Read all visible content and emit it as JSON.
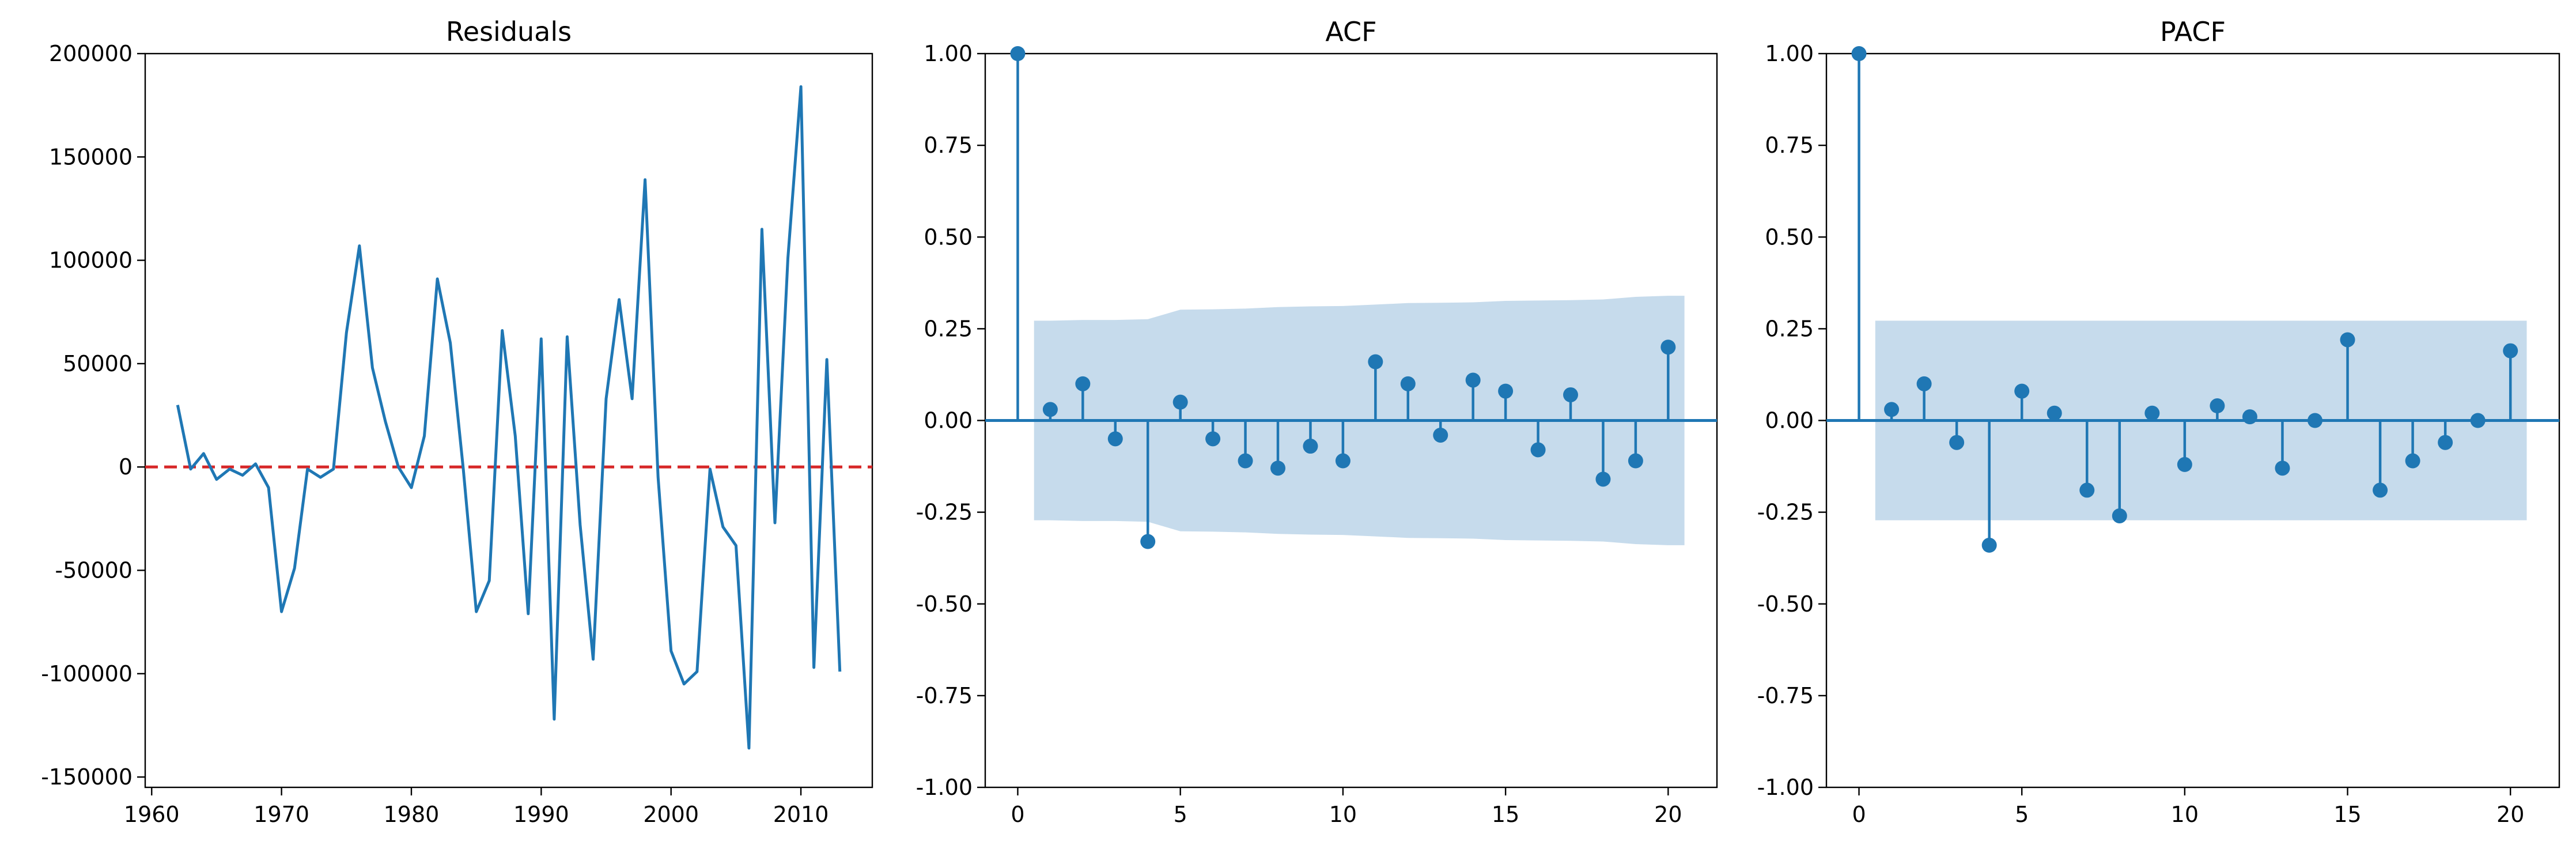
{
  "chart_data": [
    {
      "type": "line",
      "title": "Residuals",
      "xlim": [
        1959.5,
        2015.5
      ],
      "ylim": [
        -155000,
        200000
      ],
      "xticks": [
        1960,
        1970,
        1980,
        1990,
        2000,
        2010
      ],
      "yticks": [
        -150000,
        -100000,
        -50000,
        0,
        50000,
        100000,
        150000,
        200000
      ],
      "line_color": "#1f77b4",
      "reference_line": {
        "y": 0,
        "color": "#d62728",
        "style": "dashed"
      },
      "x": [
        1962,
        1963,
        1964,
        1965,
        1966,
        1967,
        1968,
        1969,
        1970,
        1971,
        1972,
        1973,
        1974,
        1975,
        1976,
        1977,
        1978,
        1979,
        1980,
        1981,
        1982,
        1983,
        1984,
        1985,
        1986,
        1987,
        1988,
        1989,
        1990,
        1991,
        1992,
        1993,
        1994,
        1995,
        1996,
        1997,
        1998,
        1999,
        2000,
        2001,
        2002,
        2003,
        2004,
        2005,
        2006,
        2007,
        2008,
        2009,
        2010,
        2011,
        2012,
        2013
      ],
      "y": [
        30000,
        -1000,
        6500,
        -6000,
        -1000,
        -4000,
        1500,
        -10000,
        -70000,
        -49000,
        -1000,
        -5000,
        -1000,
        65000,
        107000,
        48000,
        22000,
        0,
        -10000,
        15000,
        91000,
        60000,
        -1000,
        -70000,
        -55000,
        66000,
        15000,
        -71000,
        62000,
        -122000,
        63000,
        -28000,
        -93000,
        33000,
        81000,
        33000,
        139000,
        -5000,
        -89000,
        -105000,
        -99000,
        -1000,
        -29000,
        -38000,
        -136000,
        115000,
        -27000,
        101000,
        184000,
        -97000,
        52000,
        -99000
      ]
    },
    {
      "type": "stem",
      "title": "ACF",
      "xlim": [
        -1,
        21.5
      ],
      "ylim": [
        -1.0,
        1.0
      ],
      "xticks": [
        0,
        5,
        10,
        15,
        20
      ],
      "yticks": [
        -1.0,
        -0.75,
        -0.5,
        -0.25,
        0.0,
        0.25,
        0.5,
        0.75,
        1.0
      ],
      "stem_color": "#1f77b4",
      "band_color": "#c6dbec",
      "lags": [
        0,
        1,
        2,
        3,
        4,
        5,
        6,
        7,
        8,
        9,
        10,
        11,
        12,
        13,
        14,
        15,
        16,
        17,
        18,
        19,
        20
      ],
      "values": [
        1.0,
        0.03,
        0.1,
        -0.05,
        -0.33,
        0.05,
        -0.05,
        -0.11,
        -0.13,
        -0.07,
        -0.11,
        0.16,
        0.1,
        -0.04,
        0.11,
        0.08,
        -0.08,
        0.07,
        -0.16,
        -0.11,
        0.2
      ],
      "confint_upper": [
        0.272,
        0.272,
        0.274,
        0.274,
        0.276,
        0.302,
        0.303,
        0.305,
        0.309,
        0.311,
        0.312,
        0.316,
        0.32,
        0.321,
        0.322,
        0.326,
        0.327,
        0.328,
        0.33,
        0.337,
        0.34
      ]
    },
    {
      "type": "stem",
      "title": "PACF",
      "xlim": [
        -1,
        21.5
      ],
      "ylim": [
        -1.0,
        1.0
      ],
      "xticks": [
        0,
        5,
        10,
        15,
        20
      ],
      "yticks": [
        -1.0,
        -0.75,
        -0.5,
        -0.25,
        0.0,
        0.25,
        0.5,
        0.75,
        1.0
      ],
      "stem_color": "#1f77b4",
      "band_color": "#c6dbec",
      "lags": [
        0,
        1,
        2,
        3,
        4,
        5,
        6,
        7,
        8,
        9,
        10,
        11,
        12,
        13,
        14,
        15,
        16,
        17,
        18,
        19,
        20
      ],
      "values": [
        1.0,
        0.03,
        0.1,
        -0.06,
        -0.34,
        0.08,
        0.02,
        -0.19,
        -0.26,
        0.02,
        -0.12,
        0.04,
        0.01,
        -0.13,
        0.0,
        0.22,
        -0.19,
        -0.11,
        -0.06,
        0.0,
        0.19
      ],
      "confint_upper": [
        0.272,
        0.272,
        0.272,
        0.272,
        0.272,
        0.272,
        0.272,
        0.272,
        0.272,
        0.272,
        0.272,
        0.272,
        0.272,
        0.272,
        0.272,
        0.272,
        0.272,
        0.272,
        0.272,
        0.272,
        0.272
      ]
    }
  ]
}
